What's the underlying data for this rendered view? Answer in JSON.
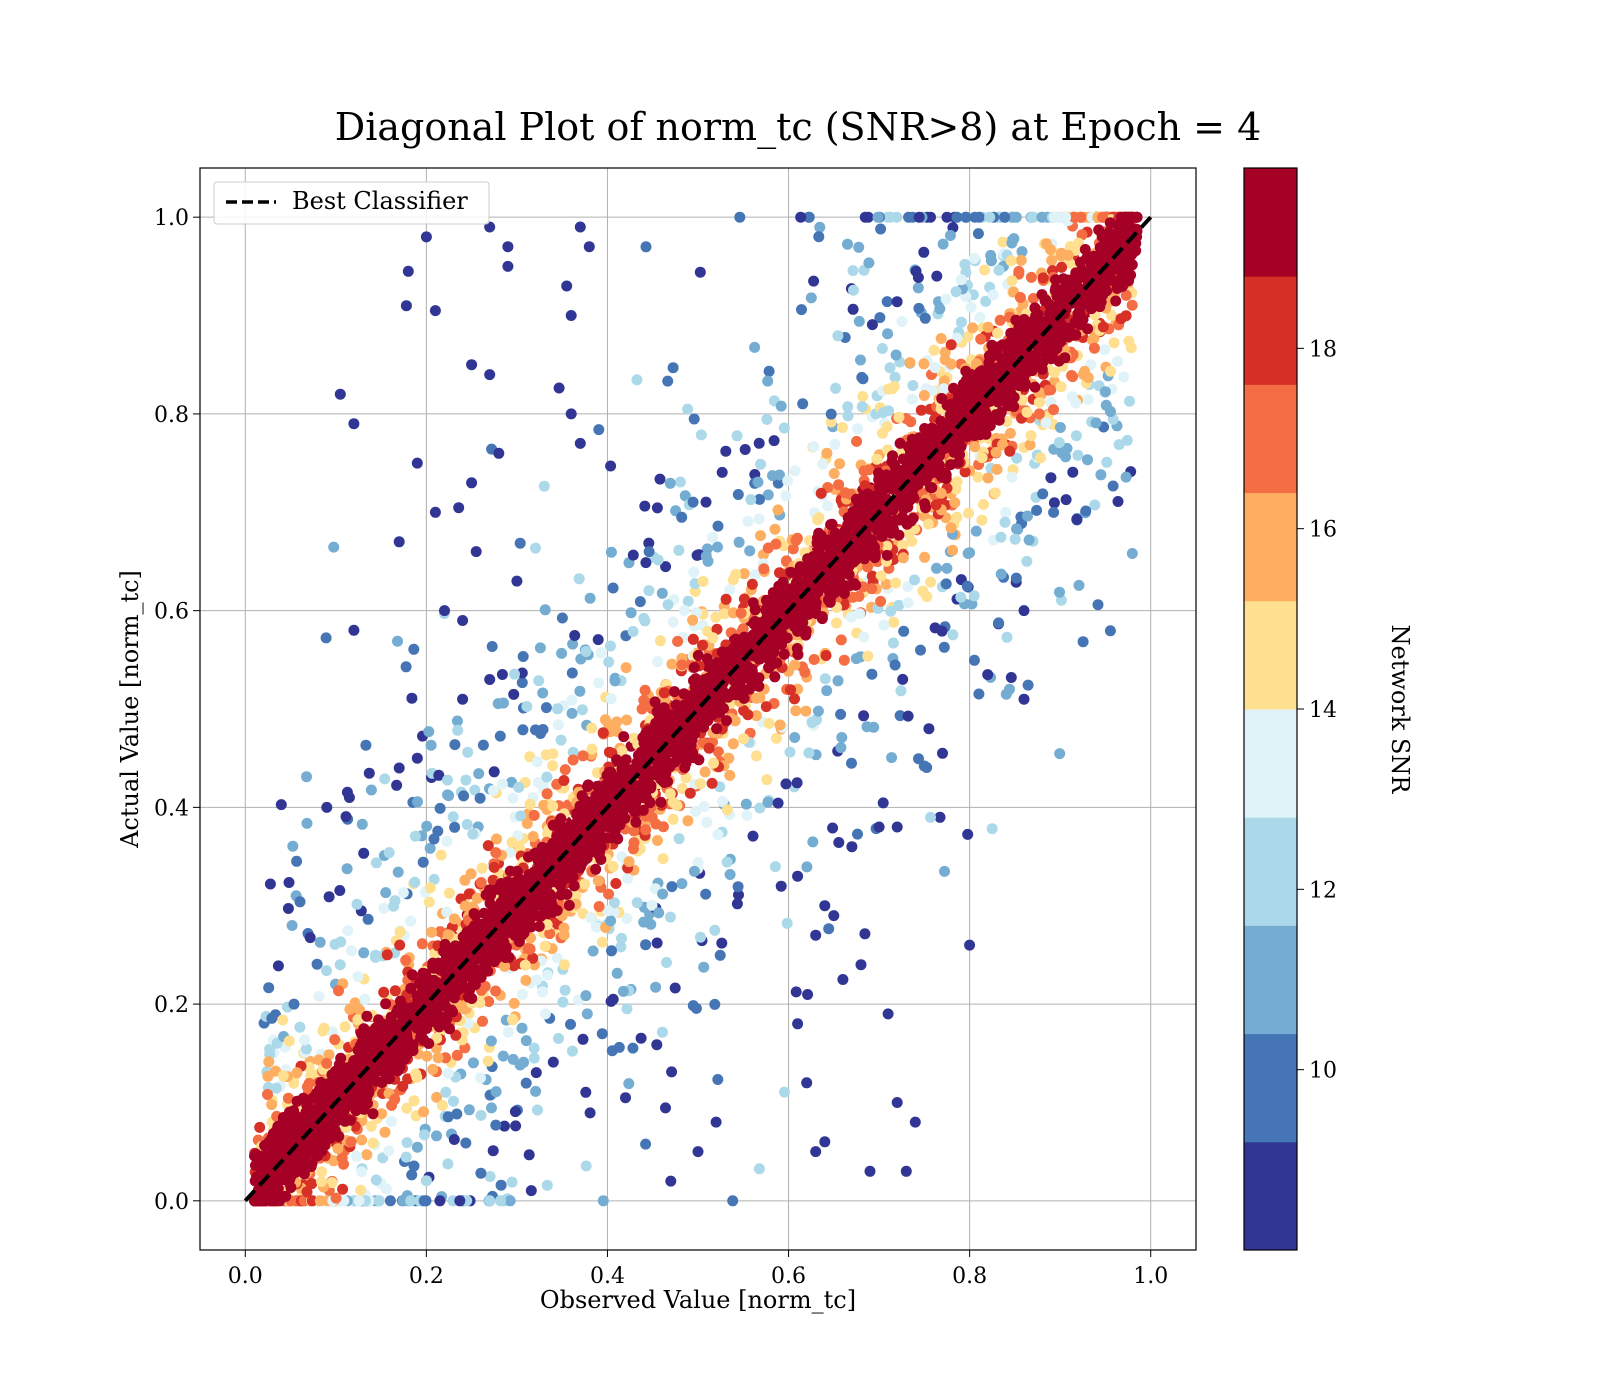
{
  "chart_data": {
    "type": "scatter",
    "title": "Diagonal Plot of norm_tc (SNR>8) at Epoch = 4",
    "xlabel": "Observed Value [norm_tc]",
    "ylabel": "Actual Value [norm_tc]",
    "xlim": [
      -0.05,
      1.05
    ],
    "ylim": [
      -0.05,
      1.05
    ],
    "xticks": [
      0.0,
      0.2,
      0.4,
      0.6,
      0.8,
      1.0
    ],
    "yticks": [
      0.0,
      0.2,
      0.4,
      0.6,
      0.8,
      1.0
    ],
    "xtick_labels": [
      "0.0",
      "0.2",
      "0.4",
      "0.6",
      "0.8",
      "1.0"
    ],
    "ytick_labels": [
      "0.0",
      "0.2",
      "0.4",
      "0.6",
      "0.8",
      "1.0"
    ],
    "grid": true,
    "legend": {
      "placement": "top-left",
      "entries": [
        {
          "label": "Best Classifier",
          "style": "black dashed line"
        }
      ]
    },
    "reference_line": {
      "name": "Best Classifier",
      "x": [
        0.0,
        1.0
      ],
      "y": [
        0.0,
        1.0
      ],
      "color": "#000000",
      "dash": true
    },
    "colorbar": {
      "label": "Network SNR",
      "range": [
        8,
        20
      ],
      "ticks": [
        10,
        12,
        14,
        16,
        18
      ],
      "tick_labels": [
        "10",
        "12",
        "14",
        "16",
        "18"
      ],
      "colors": [
        "#313695",
        "#4575b4",
        "#74add1",
        "#abd9e9",
        "#e0f3f8",
        "#fee090",
        "#fdae61",
        "#f46d43",
        "#d73027",
        "#a50026"
      ]
    },
    "outlier_points": [
      [
        0.2,
        0.98
      ],
      [
        0.27,
        0.99
      ],
      [
        0.29,
        0.97
      ],
      [
        0.18,
        0.945
      ],
      [
        0.29,
        0.95
      ],
      [
        0.37,
        0.99
      ],
      [
        0.38,
        0.97
      ],
      [
        0.178,
        0.91
      ],
      [
        0.21,
        0.905
      ],
      [
        0.355,
        0.93
      ],
      [
        0.36,
        0.9
      ],
      [
        0.105,
        0.82
      ],
      [
        0.12,
        0.79
      ],
      [
        0.25,
        0.85
      ],
      [
        0.27,
        0.84
      ],
      [
        0.19,
        0.75
      ],
      [
        0.25,
        0.73
      ],
      [
        0.28,
        0.76
      ],
      [
        0.37,
        0.77
      ],
      [
        0.36,
        0.8
      ],
      [
        0.17,
        0.67
      ],
      [
        0.21,
        0.7
      ],
      [
        0.255,
        0.66
      ],
      [
        0.12,
        0.58
      ],
      [
        0.22,
        0.6
      ],
      [
        0.24,
        0.59
      ],
      [
        0.3,
        0.63
      ],
      [
        0.17,
        0.44
      ],
      [
        0.19,
        0.45
      ],
      [
        0.115,
        0.41
      ],
      [
        0.09,
        0.4
      ],
      [
        0.24,
        0.51
      ],
      [
        0.27,
        0.53
      ],
      [
        0.8,
        0.26
      ],
      [
        0.86,
        0.6
      ],
      [
        0.86,
        0.51
      ],
      [
        0.82,
        0.535
      ],
      [
        0.77,
        0.455
      ],
      [
        0.755,
        0.48
      ],
      [
        0.72,
        0.1
      ],
      [
        0.74,
        0.08
      ],
      [
        0.73,
        0.03
      ],
      [
        0.69,
        0.03
      ],
      [
        0.68,
        0.24
      ],
      [
        0.66,
        0.225
      ],
      [
        0.71,
        0.19
      ],
      [
        0.65,
        0.29
      ],
      [
        0.64,
        0.3
      ],
      [
        0.61,
        0.33
      ],
      [
        0.63,
        0.27
      ],
      [
        0.7,
        0.38
      ],
      [
        0.72,
        0.38
      ],
      [
        0.67,
        0.36
      ],
      [
        0.62,
        0.12
      ],
      [
        0.61,
        0.18
      ],
      [
        0.63,
        0.05
      ],
      [
        0.64,
        0.06
      ],
      [
        0.47,
        0.02
      ],
      [
        0.5,
        0.05
      ],
      [
        0.52,
        0.08
      ]
    ]
  }
}
